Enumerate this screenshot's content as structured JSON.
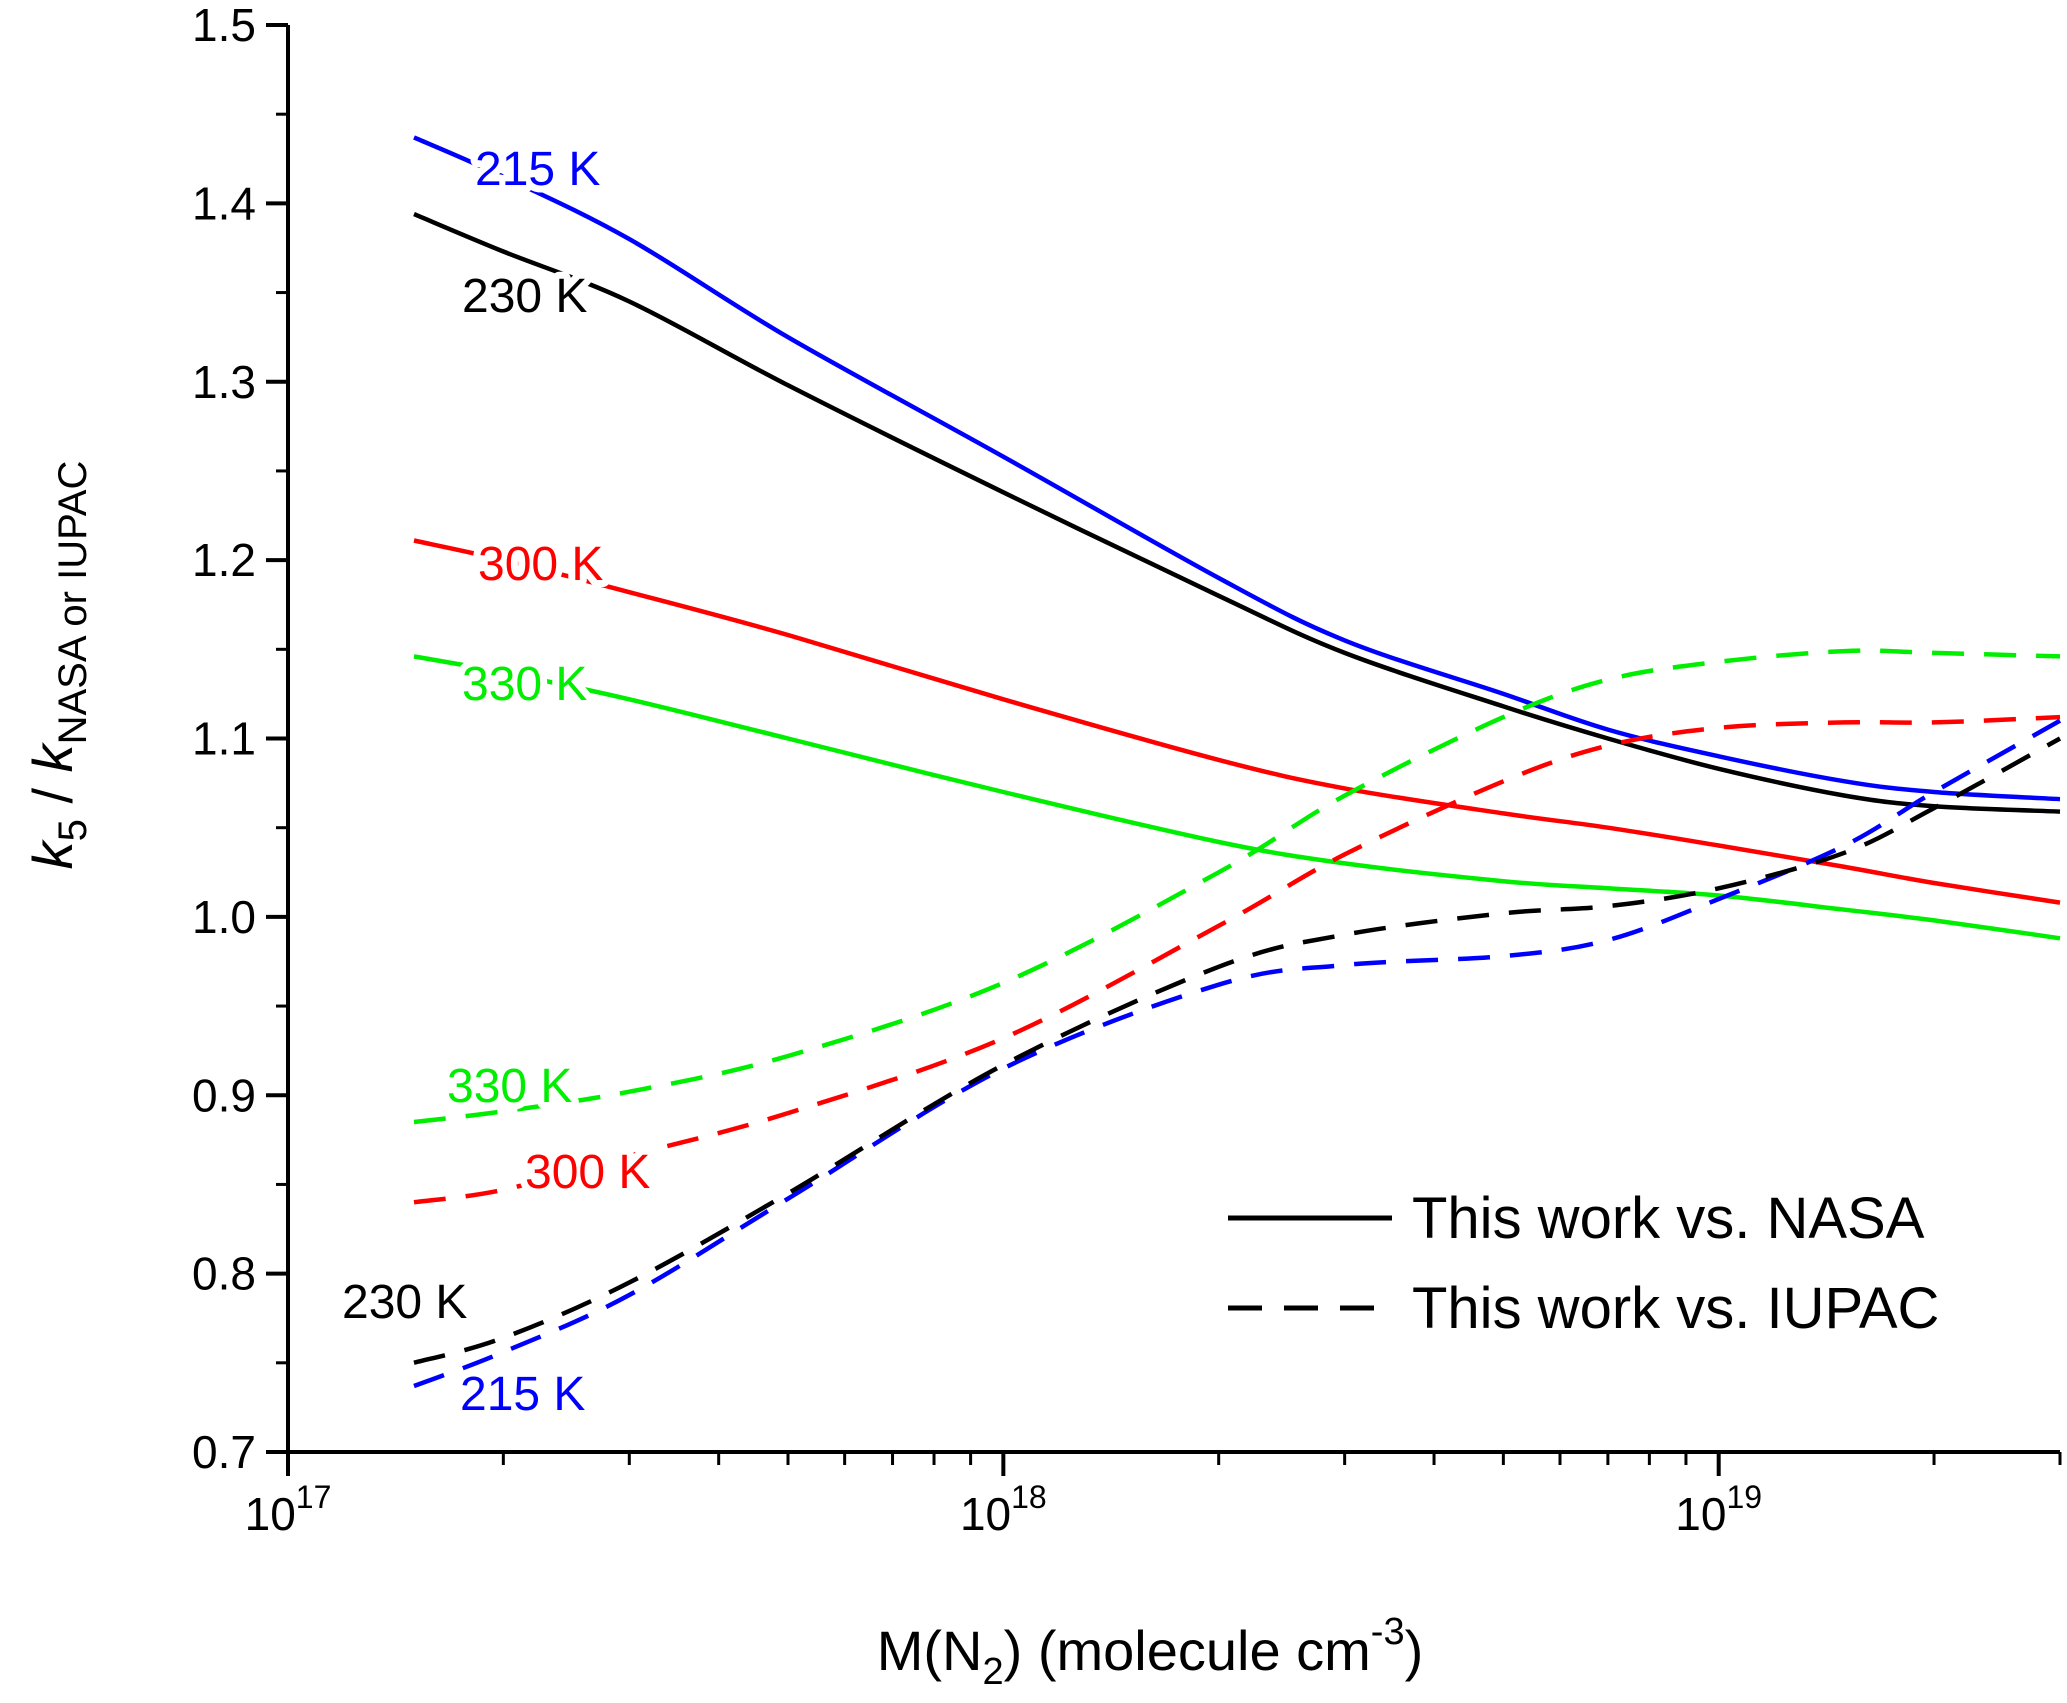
{
  "chart_data": {
    "type": "line",
    "x_scale": "log",
    "xlim": [
      1e+17,
      3e+19
    ],
    "ylim": [
      0.7,
      1.5
    ],
    "grid": false,
    "legend_position": "bottom-right",
    "xlabel": {
      "base": "M(N",
      "sub": "2",
      "mid": ") (molecule cm",
      "sup": "-3",
      "end": ")"
    },
    "ylabel": {
      "k1": "k",
      "sub1": "5",
      "sep": " / ",
      "k2": "k",
      "sub2": "NASA or IUPAC"
    },
    "x_ticks": [
      {
        "value": 1e+17,
        "base": "10",
        "exp": "17"
      },
      {
        "value": 1e+18,
        "base": "10",
        "exp": "18"
      },
      {
        "value": 1e+19,
        "base": "10",
        "exp": "19"
      }
    ],
    "y_ticks": [
      "0.7",
      "0.8",
      "0.9",
      "1.0",
      "1.1",
      "1.2",
      "1.3",
      "1.4",
      "1.5"
    ],
    "legend": [
      {
        "label": "This work vs. NASA",
        "style": "solid"
      },
      {
        "label": "This work vs. IUPAC",
        "style": "dashed"
      }
    ],
    "x": [
      1.5e+17,
      2e+17,
      3e+17,
      5e+17,
      1e+18,
      2e+18,
      3e+18,
      5e+18,
      7e+18,
      1e+19,
      1.5e+19,
      2e+19,
      3e+19
    ],
    "series": [
      {
        "label": "215 K",
        "comparison": "NASA",
        "style": "solid",
        "color": "#0000ff",
        "values": [
          1.437,
          1.415,
          1.38,
          1.325,
          1.258,
          1.19,
          1.155,
          1.125,
          1.105,
          1.09,
          1.076,
          1.07,
          1.066
        ]
      },
      {
        "label": "230 K",
        "comparison": "NASA",
        "style": "solid",
        "color": "#000000",
        "values": [
          1.394,
          1.373,
          1.345,
          1.298,
          1.238,
          1.18,
          1.148,
          1.118,
          1.1,
          1.083,
          1.068,
          1.062,
          1.059
        ]
      },
      {
        "label": "300 K",
        "comparison": "NASA",
        "style": "solid",
        "color": "#ff0000",
        "values": [
          1.211,
          1.2,
          1.182,
          1.158,
          1.122,
          1.088,
          1.072,
          1.058,
          1.05,
          1.04,
          1.028,
          1.019,
          1.008
        ]
      },
      {
        "label": "330 K",
        "comparison": "NASA",
        "style": "solid",
        "color": "#00ee00",
        "values": [
          1.146,
          1.137,
          1.122,
          1.1,
          1.07,
          1.042,
          1.03,
          1.02,
          1.016,
          1.012,
          1.004,
          0.998,
          0.988
        ]
      },
      {
        "label": "215 K",
        "comparison": "IUPAC",
        "style": "dashed",
        "color": "#0000ff",
        "values": [
          0.737,
          0.756,
          0.788,
          0.842,
          0.915,
          0.962,
          0.973,
          0.978,
          0.987,
          1.01,
          1.04,
          1.07,
          1.11
        ]
      },
      {
        "label": "230 K",
        "comparison": "IUPAC",
        "style": "dashed",
        "color": "#000000",
        "values": [
          0.75,
          0.764,
          0.795,
          0.845,
          0.917,
          0.972,
          0.99,
          1.002,
          1.006,
          1.016,
          1.036,
          1.061,
          1.1
        ]
      },
      {
        "label": "300 K",
        "comparison": "IUPAC",
        "style": "dashed",
        "color": "#ff0000",
        "values": [
          0.84,
          0.847,
          0.866,
          0.89,
          0.932,
          0.995,
          1.035,
          1.076,
          1.096,
          1.106,
          1.109,
          1.109,
          1.112
        ]
      },
      {
        "label": "330 K",
        "comparison": "IUPAC",
        "style": "dashed",
        "color": "#00ee00",
        "values": [
          0.885,
          0.891,
          0.902,
          0.922,
          0.963,
          1.025,
          1.068,
          1.112,
          1.133,
          1.143,
          1.149,
          1.148,
          1.146
        ]
      }
    ]
  }
}
